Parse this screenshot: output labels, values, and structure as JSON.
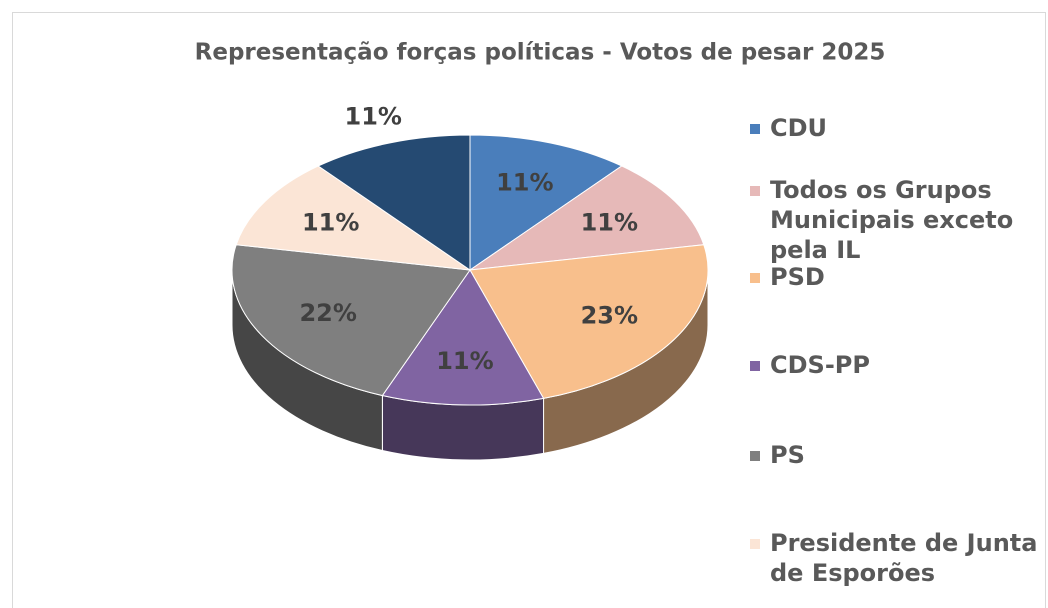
{
  "chart_data": {
    "type": "pie",
    "title": "Representação forças políticas - Votos de pesar 2025",
    "categories": [
      "CDU",
      "Todos os Grupos Municipais exceto pela IL",
      "PSD",
      "CDS-PP",
      "PS",
      "Presidente de Junta de Esporões",
      null
    ],
    "values": [
      11,
      11,
      23,
      11,
      22,
      11,
      11
    ],
    "value_labels": [
      "11%",
      "11%",
      "23%",
      "11%",
      "22%",
      "11%",
      "11%"
    ],
    "colors": [
      "#4a7ebb",
      "#e6b9b8",
      "#f8bf8c",
      "#8064a2",
      "#7f7f7f",
      "#fbe5d6",
      "#254a72"
    ],
    "legend": "right"
  }
}
